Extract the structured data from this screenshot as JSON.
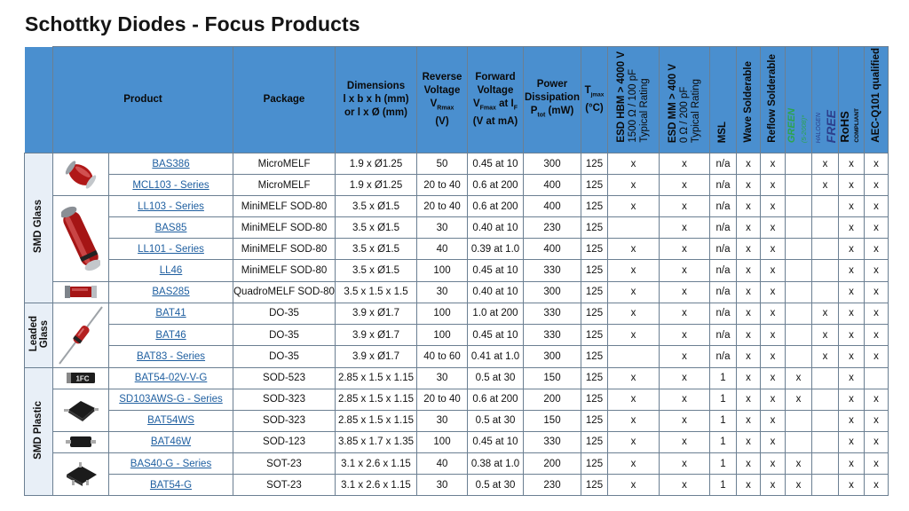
{
  "title": "Schottky Diodes - Focus Products",
  "headers": {
    "product": "Product",
    "package": "Package",
    "dimensions_l1": "Dimensions",
    "dimensions_l2": "l x b x h (mm)",
    "dimensions_l3": "or l x Ø (mm)",
    "reverse_l1": "Reverse",
    "reverse_l2": "Voltage",
    "reverse_l3": "V",
    "reverse_sub": "Rmax",
    "reverse_l4": "(V)",
    "forward_l1": "Forward",
    "forward_l2": "Voltage",
    "forward_l3": "V",
    "forward_sub": "Fmax",
    "forward_l3b": " at I",
    "forward_sub2": "F",
    "forward_l4": "(V at mA)",
    "power_l1": "Power",
    "power_l2": "Dissipation",
    "power_l3": "P",
    "power_sub": "tot",
    "power_l4": " (mW)",
    "tj_l1": "T",
    "tj_sub": "jmax",
    "tj_l2": "(°C)",
    "esd_hbm_l1": "ESD HBM > 4000 V",
    "esd_hbm_l2": "1500 Ω / 100 pF",
    "esd_hbm_l3": "Typical Rating",
    "esd_mm_l1": "ESD MM > 400 V",
    "esd_mm_l2": "0 Ω / 200 pF",
    "esd_mm_l3": "Typical Rating",
    "msl": "MSL",
    "wave": "Wave Solderable",
    "reflow": "Reflow Solderable",
    "green": "GREEN",
    "green_sub": "(5-2008)*",
    "halogen": "HALOGEN",
    "free": "FREE",
    "rohs": "RoHS",
    "compliant": "COMPLIANT",
    "aec": "AEC-Q101 qualified"
  },
  "groups": {
    "smd_glass": "SMD Glass",
    "leaded_glass_l1": "Leaded",
    "leaded_glass_l2": "Glass",
    "smd_plastic": "SMD Plastic"
  },
  "rows": [
    {
      "product": "BAS386",
      "package": "MicroMELF",
      "dim": "1.9 x Ø1.25",
      "vr": "50",
      "vf": "0.45 at 10",
      "ptot": "300",
      "tj": "125",
      "hbm": "x",
      "mm": "x",
      "msl": "n/a",
      "wave": "x",
      "reflow": "x",
      "green": "",
      "halogen": "x",
      "rohs": "x",
      "aec": "x"
    },
    {
      "product": "MCL103 - Series",
      "package": "MicroMELF",
      "dim": "1.9 x Ø1.25",
      "vr": "20 to 40",
      "vf": "0.6 at 200",
      "ptot": "400",
      "tj": "125",
      "hbm": "x",
      "mm": "x",
      "msl": "n/a",
      "wave": "x",
      "reflow": "x",
      "green": "",
      "halogen": "x",
      "rohs": "x",
      "aec": "x"
    },
    {
      "product": "LL103 - Series",
      "package": "MiniMELF SOD-80",
      "dim": "3.5 x Ø1.5",
      "vr": "20 to 40",
      "vf": "0.6 at 200",
      "ptot": "400",
      "tj": "125",
      "hbm": "x",
      "mm": "x",
      "msl": "n/a",
      "wave": "x",
      "reflow": "x",
      "green": "",
      "halogen": "",
      "rohs": "x",
      "aec": "x"
    },
    {
      "product": "BAS85",
      "package": "MiniMELF SOD-80",
      "dim": "3.5 x Ø1.5",
      "vr": "30",
      "vf": "0.40 at 10",
      "ptot": "230",
      "tj": "125",
      "hbm": "",
      "mm": "x",
      "msl": "n/a",
      "wave": "x",
      "reflow": "x",
      "green": "",
      "halogen": "",
      "rohs": "x",
      "aec": "x"
    },
    {
      "product": "LL101 - Series",
      "package": "MiniMELF SOD-80",
      "dim": "3.5 x Ø1.5",
      "vr": "40",
      "vf": "0.39 at 1.0",
      "ptot": "400",
      "tj": "125",
      "hbm": "x",
      "mm": "x",
      "msl": "n/a",
      "wave": "x",
      "reflow": "x",
      "green": "",
      "halogen": "",
      "rohs": "x",
      "aec": "x"
    },
    {
      "product": "LL46",
      "package": "MiniMELF SOD-80",
      "dim": "3.5 x Ø1.5",
      "vr": "100",
      "vf": "0.45 at 10",
      "ptot": "330",
      "tj": "125",
      "hbm": "x",
      "mm": "x",
      "msl": "n/a",
      "wave": "x",
      "reflow": "x",
      "green": "",
      "halogen": "",
      "rohs": "x",
      "aec": "x"
    },
    {
      "product": "BAS285",
      "package": "QuadroMELF SOD-80",
      "dim": "3.5 x 1.5 x 1.5",
      "vr": "30",
      "vf": "0.40 at 10",
      "ptot": "300",
      "tj": "125",
      "hbm": "x",
      "mm": "x",
      "msl": "n/a",
      "wave": "x",
      "reflow": "x",
      "green": "",
      "halogen": "",
      "rohs": "x",
      "aec": "x"
    },
    {
      "product": "BAT41",
      "package": "DO-35",
      "dim": "3.9 x Ø1.7",
      "vr": "100",
      "vf": "1.0 at 200",
      "ptot": "330",
      "tj": "125",
      "hbm": "x",
      "mm": "x",
      "msl": "n/a",
      "wave": "x",
      "reflow": "x",
      "green": "",
      "halogen": "x",
      "rohs": "x",
      "aec": "x"
    },
    {
      "product": "BAT46",
      "package": "DO-35",
      "dim": "3.9 x Ø1.7",
      "vr": "100",
      "vf": "0.45 at 10",
      "ptot": "330",
      "tj": "125",
      "hbm": "x",
      "mm": "x",
      "msl": "n/a",
      "wave": "x",
      "reflow": "x",
      "green": "",
      "halogen": "x",
      "rohs": "x",
      "aec": "x"
    },
    {
      "product": "BAT83 - Series",
      "package": "DO-35",
      "dim": "3.9 x Ø1.7",
      "vr": "40 to  60",
      "vf": "0.41 at 1.0",
      "ptot": "300",
      "tj": "125",
      "hbm": "",
      "mm": "x",
      "msl": "n/a",
      "wave": "x",
      "reflow": "x",
      "green": "",
      "halogen": "x",
      "rohs": "x",
      "aec": "x"
    },
    {
      "product": "BAT54-02V-V-G",
      "package": "SOD-523",
      "dim": "2.85 x 1.5 x 1.15",
      "vr": "30",
      "vf": "0.5 at 30",
      "ptot": "150",
      "tj": "125",
      "hbm": "x",
      "mm": "x",
      "msl": "1",
      "wave": "x",
      "reflow": "x",
      "green": "x",
      "halogen": "",
      "rohs": "x",
      "aec": ""
    },
    {
      "product": "SD103AWS-G - Series",
      "package": "SOD-323",
      "dim": "2.85 x 1.5 x 1.15",
      "vr": "20 to 40",
      "vf": "0.6 at 200",
      "ptot": "200",
      "tj": "125",
      "hbm": "x",
      "mm": "x",
      "msl": "1",
      "wave": "x",
      "reflow": "x",
      "green": "x",
      "halogen": "",
      "rohs": "x",
      "aec": "x"
    },
    {
      "product": "BAT54WS",
      "package": "SOD-323",
      "dim": "2.85 x 1.5 x 1.15",
      "vr": "30",
      "vf": "0.5 at 30",
      "ptot": "150",
      "tj": "125",
      "hbm": "x",
      "mm": "x",
      "msl": "1",
      "wave": "x",
      "reflow": "x",
      "green": "",
      "halogen": "",
      "rohs": "x",
      "aec": "x"
    },
    {
      "product": "BAT46W",
      "package": "SOD-123",
      "dim": "3.85 x 1.7 x 1.35",
      "vr": "100",
      "vf": "0.45 at 10",
      "ptot": "330",
      "tj": "125",
      "hbm": "x",
      "mm": "x",
      "msl": "1",
      "wave": "x",
      "reflow": "x",
      "green": "",
      "halogen": "",
      "rohs": "x",
      "aec": "x"
    },
    {
      "product": "BAS40-G - Series",
      "package": "SOT-23",
      "dim": "3.1 x 2.6 x 1.15",
      "vr": "40",
      "vf": "0.38 at 1.0",
      "ptot": "200",
      "tj": "125",
      "hbm": "x",
      "mm": "x",
      "msl": "1",
      "wave": "x",
      "reflow": "x",
      "green": "x",
      "halogen": "",
      "rohs": "x",
      "aec": "x"
    },
    {
      "product": "BAT54-G",
      "package": "SOT-23",
      "dim": "3.1 x 2.6 x 1.15",
      "vr": "30",
      "vf": "0.5 at 30",
      "ptot": "230",
      "tj": "125",
      "hbm": "x",
      "mm": "x",
      "msl": "1",
      "wave": "x",
      "reflow": "x",
      "green": "x",
      "halogen": "",
      "rohs": "x",
      "aec": "x"
    }
  ],
  "sot_marking": "1FC",
  "colors": {
    "header_bg": "#4a8fcf",
    "group_bg": "#e8eff7",
    "link": "#1f5fa0",
    "green": "#2da44e",
    "halogen": "#2c3f8c"
  }
}
